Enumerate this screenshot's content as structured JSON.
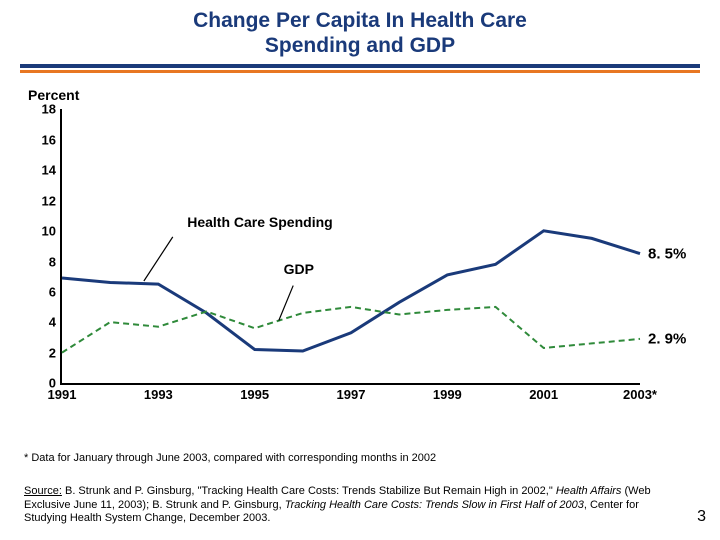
{
  "title_line1": "Change Per Capita In Health Care",
  "title_line2": "Spending and GDP",
  "title_fontsize": 21,
  "title_color": "#1a3a7a",
  "rule_color_top": "#1a3a7a",
  "rule_color_bottom": "#e87722",
  "yaxis_label": "Percent",
  "yaxis_label_fontsize": 14,
  "chart": {
    "type": "line",
    "ylim": [
      0,
      18
    ],
    "yticks": [
      0,
      2,
      4,
      6,
      8,
      10,
      12,
      14,
      16,
      18
    ],
    "xcats": [
      "1991",
      "1993",
      "1995",
      "1997",
      "1999",
      "2001",
      "2003*"
    ],
    "xrange": [
      1991,
      2003
    ],
    "tick_fontsize": 13,
    "axis_color": "#000000",
    "background_color": "#ffffff",
    "series": {
      "hcs": {
        "label": "Health Care Spending",
        "color": "#1a3a7a",
        "width": 3,
        "dash": "none",
        "x": [
          1991,
          1992,
          1993,
          1994,
          1995,
          1996,
          1997,
          1998,
          1999,
          2000,
          2001,
          2002,
          2003
        ],
        "y": [
          6.9,
          6.6,
          6.5,
          4.6,
          2.2,
          2.1,
          3.3,
          5.3,
          7.1,
          7.8,
          10.0,
          9.5,
          8.5
        ],
        "end_value": "8. 5%",
        "label_pos": {
          "x": 1993.6,
          "y": 10.1
        },
        "pointer": {
          "from": {
            "x": 1993.3,
            "y": 9.6
          },
          "to": {
            "x": 1992.7,
            "y": 6.7
          }
        }
      },
      "gdp": {
        "label": "GDP",
        "color": "#2f8a3a",
        "width": 2,
        "dash": "6,4",
        "x": [
          1991,
          1992,
          1993,
          1994,
          1995,
          1996,
          1997,
          1998,
          1999,
          2000,
          2001,
          2002,
          2003
        ],
        "y": [
          2.0,
          4.0,
          3.7,
          4.7,
          3.6,
          4.6,
          5.0,
          4.5,
          4.8,
          5.0,
          2.3,
          2.6,
          2.9
        ],
        "end_value": "2. 9%",
        "label_pos": {
          "x": 1995.6,
          "y": 7.0
        },
        "pointer": {
          "from": {
            "x": 1995.8,
            "y": 6.4
          },
          "to": {
            "x": 1995.5,
            "y": 4.1
          }
        }
      }
    },
    "end_label_fontsize": 15,
    "series_label_fontsize": 14
  },
  "footnote1": "* Data for January through June 2003, compared with corresponding months in 2002",
  "footnote2_prefix": "Source:",
  "footnote2_body1": " B. Strunk and P. Ginsburg, \"Tracking Health Care Costs: Trends Stabilize But Remain High in 2002,\" ",
  "footnote2_italic1": "Health Affairs",
  "footnote2_body2": " (Web Exclusive June 11, 2003); B. Strunk and P. Ginsburg, ",
  "footnote2_italic2": "Tracking Health Care Costs: Trends Slow in First Half of 2003",
  "footnote2_body3": ", Center for Studying Health System Change, December 2003.",
  "footnote_fontsize": 11,
  "pagenum": "3",
  "pagenum_fontsize": 16
}
